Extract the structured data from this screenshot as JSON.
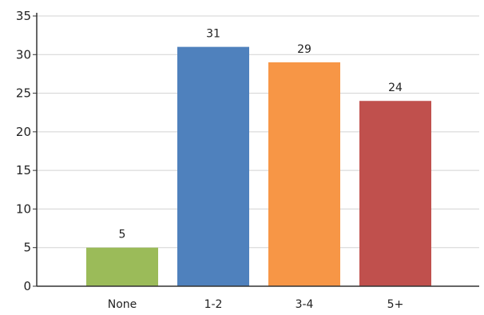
{
  "chart_data": {
    "type": "bar",
    "categories": [
      "None",
      "1-2",
      "3-4",
      "5+"
    ],
    "values": [
      5,
      31,
      29,
      24
    ],
    "colors": [
      "#9bbb59",
      "#4f81bd",
      "#f79646",
      "#c0504d"
    ],
    "title": "",
    "xlabel": "",
    "ylabel": "",
    "ylim": [
      0,
      35
    ],
    "yticks": [
      0,
      5,
      10,
      15,
      20,
      25,
      30,
      35
    ],
    "grid": true,
    "legend": "none",
    "data_labels": true
  }
}
